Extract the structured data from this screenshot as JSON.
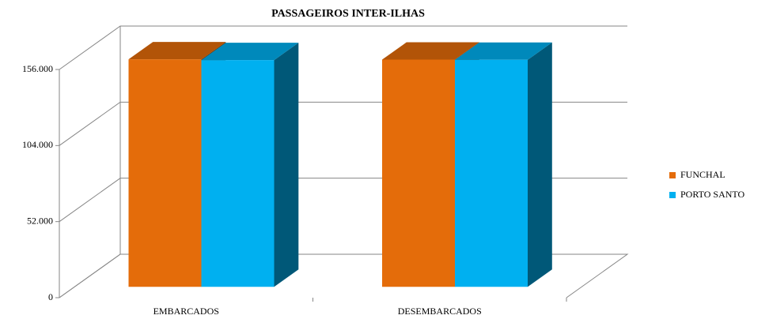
{
  "chart_data": {
    "type": "bar3d",
    "title": "PASSAGEIROS INTER-ILHAS",
    "categories": [
      "EMBARCADOS",
      "DESEMBARCADOS"
    ],
    "series": [
      {
        "name": "FUNCHAL",
        "color": "#E46C0A",
        "values": [
          155500,
          155300
        ]
      },
      {
        "name": "PORTO SANTO",
        "color": "#00B0F0",
        "values": [
          155000,
          155200
        ]
      }
    ],
    "ylim": [
      0,
      156000
    ],
    "yticks": [
      0,
      {
        "value": 52000,
        "label": "52.000"
      },
      {
        "value": 104000,
        "label": "104.000"
      },
      {
        "value": 156000,
        "label": "156.000"
      }
    ],
    "grid": true,
    "legend": "right"
  }
}
